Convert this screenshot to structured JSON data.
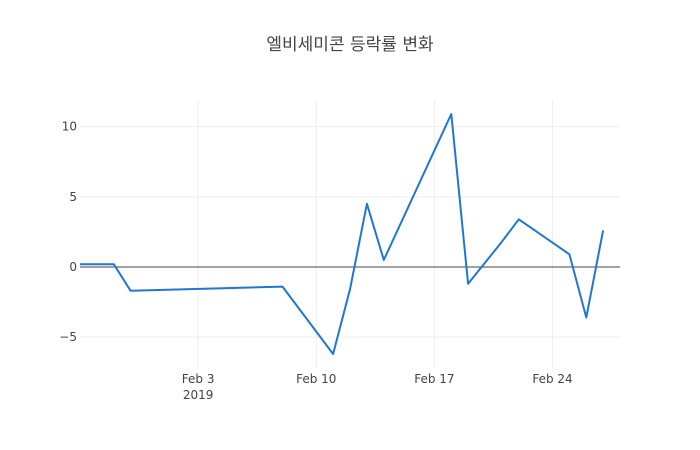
{
  "chart_data": {
    "type": "line",
    "title": "엘비세미콘 등락률 변화",
    "xlabel": "",
    "ylabel": "",
    "x_range": [
      "2019-01-27",
      "2019-02-28"
    ],
    "y_range": [
      -7.2,
      11.9
    ],
    "x_ticks": [
      {
        "date": "2019-02-03",
        "label": "Feb 3",
        "sublabel": "2019"
      },
      {
        "date": "2019-02-10",
        "label": "Feb 10",
        "sublabel": ""
      },
      {
        "date": "2019-02-17",
        "label": "Feb 17",
        "sublabel": ""
      },
      {
        "date": "2019-02-24",
        "label": "Feb 24",
        "sublabel": ""
      }
    ],
    "y_ticks": [
      {
        "value": 10,
        "label": "10"
      },
      {
        "value": 5,
        "label": "5"
      },
      {
        "value": 0,
        "label": "0"
      },
      {
        "value": -5,
        "label": "−5"
      }
    ],
    "grid": true,
    "legend": "none",
    "series": [
      {
        "color": "#1f77d4",
        "x": [
          "2019-01-27",
          "2019-01-29",
          "2019-01-30",
          "2019-02-08",
          "2019-02-11",
          "2019-02-12",
          "2019-02-13",
          "2019-02-14",
          "2019-02-18",
          "2019-02-19",
          "2019-02-21",
          "2019-02-22",
          "2019-02-25",
          "2019-02-26",
          "2019-02-27"
        ],
        "y": [
          0.2,
          0.2,
          -1.7,
          -1.4,
          -6.2,
          -1.6,
          4.5,
          0.5,
          10.9,
          -1.2,
          1.8,
          3.4,
          0.9,
          -3.6,
          2.6
        ]
      }
    ]
  }
}
